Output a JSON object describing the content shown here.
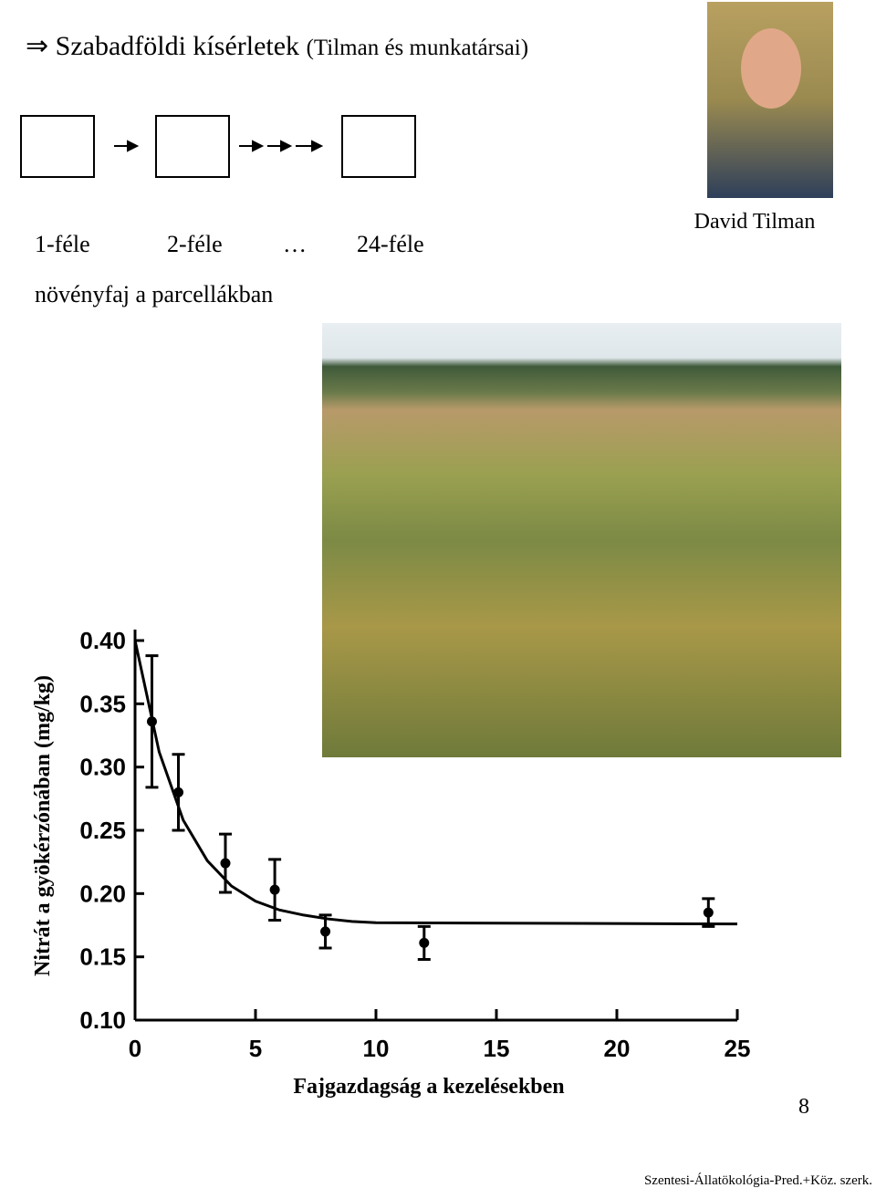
{
  "header": {
    "arrow": "⇒",
    "title": "Szabadföldi kísérletek",
    "subtitle": "(Tilman és munkatársai)"
  },
  "diagram": {
    "labels": [
      "1-féle",
      "2-féle",
      "…",
      "24-féle"
    ],
    "caption": "növényfaj a parcellákban"
  },
  "photo_caption": "David Tilman",
  "chart_data": {
    "type": "scatter",
    "x_label": "Fajgazdagság a kezelésekben",
    "y_label": "Nitrát a gyökérzónában (mg/kg)",
    "xlim": [
      0,
      25
    ],
    "ylim": [
      0.1,
      0.4
    ],
    "xticks": [
      0,
      5,
      10,
      15,
      20,
      25
    ],
    "yticks": [
      {
        "value": 0.1,
        "label": "0.10"
      },
      {
        "value": 0.15,
        "label": "0.15"
      },
      {
        "value": 0.2,
        "label": "0.20"
      },
      {
        "value": 0.25,
        "label": "0.25"
      },
      {
        "value": 0.3,
        "label": "0.30"
      },
      {
        "value": 0.35,
        "label": "0.35"
      },
      {
        "value": 0.4,
        "label": "0.40"
      }
    ],
    "color": "#000000",
    "x": [
      0.7,
      1.8,
      3.75,
      5.8,
      7.9,
      12,
      23.8
    ],
    "values": [
      0.336,
      0.28,
      0.224,
      0.203,
      0.17,
      0.161,
      0.185
    ],
    "errors": [
      0.052,
      0.03,
      0.023,
      0.024,
      0.013,
      0.013,
      0.011
    ],
    "fit": {
      "x": [
        0,
        1,
        2,
        3,
        4,
        5,
        6,
        7,
        8,
        9,
        10,
        25
      ],
      "values": [
        0.4,
        0.312,
        0.258,
        0.226,
        0.206,
        0.194,
        0.187,
        0.183,
        0.18,
        0.178,
        0.177,
        0.176
      ]
    }
  },
  "page_number": "8",
  "footer": "Szentesi-Állatökológia-Pred.+Köz. szerk."
}
